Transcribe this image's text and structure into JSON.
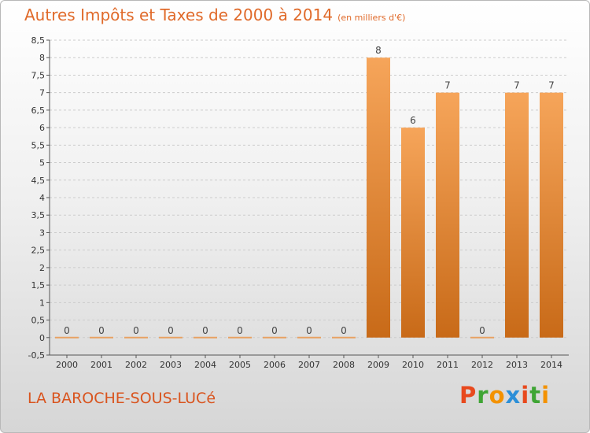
{
  "title": "Autres Impôts et Taxes de 2000 à 2014",
  "unit": "(en milliers d'€)",
  "commune": "LA BAROCHE-SOUS-LUCé",
  "logo": {
    "letters": [
      "P",
      "r",
      "o",
      "x",
      "i",
      "t",
      "i"
    ],
    "colors": [
      "#e8491d",
      "#3fa535",
      "#f39200",
      "#2b8fd8",
      "#e8491d",
      "#3fa535",
      "#f39200"
    ]
  },
  "colors": {
    "bar_top": "#f6a55a",
    "bar_bottom": "#c86a18",
    "zero_bar": "#e8a264",
    "axis": "#555555",
    "grid": "#cccccc"
  },
  "chart_data": {
    "type": "bar",
    "title": "Autres Impôts et Taxes de 2000 à 2014",
    "categories": [
      "2000",
      "2001",
      "2002",
      "2003",
      "2004",
      "2005",
      "2006",
      "2007",
      "2008",
      "2009",
      "2010",
      "2011",
      "2012",
      "2013",
      "2014"
    ],
    "values": [
      0,
      0,
      0,
      0,
      0,
      0,
      0,
      0,
      0,
      8,
      6,
      7,
      0,
      7,
      7
    ],
    "data_labels": [
      "0",
      "0",
      "0",
      "0",
      "0",
      "0",
      "0",
      "0",
      "0",
      "8",
      "6",
      "7",
      "0",
      "7",
      "7"
    ],
    "ylim": [
      -0.5,
      8.5
    ],
    "yticks": [
      "-0,5",
      "0",
      "0,5",
      "1",
      "1,5",
      "2",
      "2,5",
      "3",
      "3,5",
      "4",
      "4,5",
      "5",
      "5,5",
      "6",
      "6,5",
      "7",
      "7,5",
      "8",
      "8,5"
    ],
    "grid": "horizontal dashed",
    "xlabel": "",
    "ylabel": ""
  }
}
